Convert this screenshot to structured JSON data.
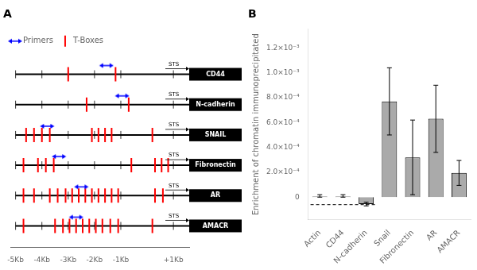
{
  "chart_data": [
    {
      "type": "gene_map",
      "title": "A",
      "categories": [
        "CD44",
        "N-cadherin",
        "SNAIL",
        "Fibronectin",
        "AR",
        "AMACR"
      ],
      "series": [
        {
          "name": "Primers",
          "color": "blue",
          "marker": "double_arrow",
          "values": [
            [
              -1.55
            ],
            [
              -0.95
            ],
            [
              -3.8
            ],
            [
              -3.35
            ],
            [
              -2.5
            ],
            [
              -2.7
            ]
          ]
        },
        {
          "name": "T-Boxes",
          "color": "red",
          "marker": "vline",
          "values": [
            [
              -3.0,
              -1.2
            ],
            [
              -2.3,
              -0.7
            ],
            [
              -4.6,
              -4.3,
              -4.0,
              -3.7,
              -2.1,
              -1.85,
              -1.6,
              -1.35,
              0.2
            ],
            [
              -4.7,
              -4.15,
              -3.85,
              -3.55,
              -0.6,
              0.3,
              0.55,
              0.8
            ],
            [
              -4.7,
              -4.3,
              -3.7,
              -3.4,
              -3.1,
              -2.85,
              -2.6,
              -2.35,
              -2.1,
              -1.85,
              -1.6,
              -1.35,
              -1.1,
              0.3,
              0.6
            ],
            [
              -4.7,
              -3.5,
              -3.2,
              -2.95,
              -2.7,
              -2.45,
              -2.2,
              -1.95,
              -1.7,
              -1.4,
              -1.1,
              0.2
            ]
          ]
        }
      ],
      "xlim": [
        -5.2,
        1.6
      ],
      "xticks": [
        {
          "value": -5,
          "label": "-5Kb"
        },
        {
          "value": -4,
          "label": "-4Kb"
        },
        {
          "value": -3,
          "label": "-3Kb"
        },
        {
          "value": -2,
          "label": "-2Kb"
        },
        {
          "value": -1,
          "label": "-1Kb"
        },
        {
          "value": 1,
          "label": "+1Kb"
        }
      ],
      "annotations": [
        {
          "text": "STS",
          "category": "CD44"
        },
        {
          "text": "STS",
          "category": "N-cadherin"
        },
        {
          "text": "STS",
          "category": "SNAIL"
        },
        {
          "text": "STS",
          "category": "Fibronectin"
        },
        {
          "text": "STS",
          "category": "AR"
        },
        {
          "text": "STS",
          "category": "AMACR"
        }
      ],
      "legend": "upper left",
      "grid": false
    },
    {
      "type": "bar",
      "title": "B",
      "categories": [
        "Actin",
        "CD44",
        "N-cadherin",
        "Snail",
        "Fibronectin",
        "AR",
        "AMACR"
      ],
      "values": [
        5e-06,
        5e-06,
        -5.5e-05,
        0.00077,
        0.00032,
        0.00063,
        0.000195
      ],
      "errors_up": [
        1.5e-05,
        1.5e-05,
        1.5e-05,
        0.00027,
        0.0003,
        0.00027,
        0.0001
      ],
      "errors_down": [
        5e-06,
        5e-06,
        1.5e-05,
        0.00027,
        0.0003,
        0.00027,
        0.0001
      ],
      "color": "#aaaaaa",
      "ylabel": "Enrichment of chromatin immunoprecipitated",
      "ylim": [
        -0.00018,
        0.00135
      ],
      "yticks": [
        0,
        {
          "value": 0.0002,
          "label": "2.0×10⁻⁴"
        },
        {
          "value": 0.0004,
          "label": "4.0×10⁻⁴"
        },
        {
          "value": 0.0006,
          "label": "6.0×10⁻⁴"
        },
        {
          "value": 0.0008,
          "label": "8.0×10⁻⁴"
        },
        {
          "value": 0.001,
          "label": "1.0×10⁻³"
        },
        {
          "value": 0.0012,
          "label": "1.2×10⁻³"
        }
      ],
      "reference_line": {
        "value": -6e-05,
        "from": "Actin",
        "to": "N-cadherin",
        "line_style": "dashed"
      },
      "grid": false
    }
  ]
}
